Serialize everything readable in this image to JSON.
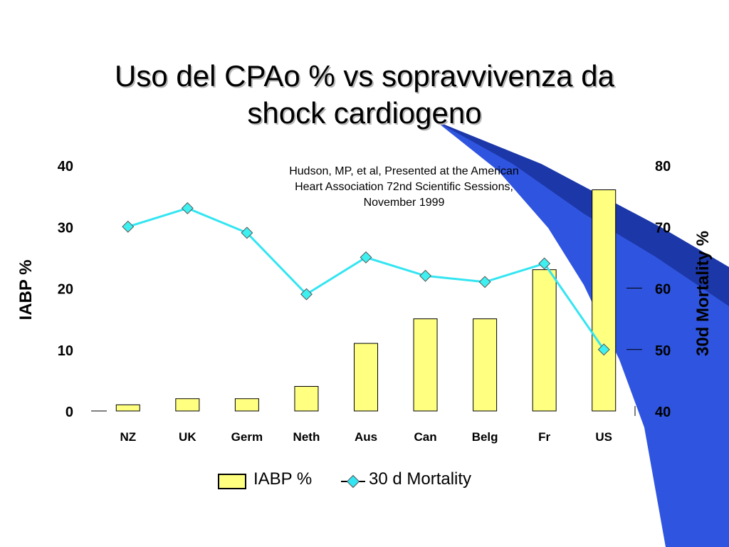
{
  "slide": {
    "title_line1": "Uso del CPAo % vs sopravvivenza da",
    "title_line2": "shock cardiogeno",
    "citation_line1": "Hudson, MP, et al,  Presented at the American",
    "citation_line2": "Heart Association  72nd Scientific Sessions,",
    "citation_line3": "November 1999"
  },
  "legend": {
    "bar_label": "IABP %",
    "line_label": "30 d Mortality"
  },
  "colors": {
    "bar_fill": "#ffff80",
    "line": "#33e5f2",
    "marker": "#3ff0f0",
    "swoosh_dark": "#1f3fb0",
    "swoosh_light": "#3360f2"
  },
  "chart_data": {
    "type": "bar",
    "categories": [
      "NZ",
      "UK",
      "Germ",
      "Neth",
      "Aus",
      "Can",
      "Belg",
      "Fr",
      "US"
    ],
    "series": [
      {
        "name": "IABP %",
        "type": "bar",
        "axis": "left",
        "values": [
          1,
          2,
          2,
          4,
          11,
          15,
          15,
          23,
          36
        ]
      },
      {
        "name": "30 d Mortality",
        "type": "line",
        "axis": "right",
        "values": [
          70,
          73,
          69,
          59,
          65,
          62,
          61,
          64,
          50
        ]
      }
    ],
    "ylabel": "IABP %",
    "ylim": [
      0,
      40
    ],
    "yticks": [
      "0",
      "10",
      "20",
      "30",
      "40"
    ],
    "y2label": "30d Mortality %",
    "y2lim": [
      40,
      80
    ],
    "y2ticks": [
      "40",
      "50",
      "60",
      "70",
      "80"
    ],
    "grid": false,
    "legend_position": "bottom"
  }
}
